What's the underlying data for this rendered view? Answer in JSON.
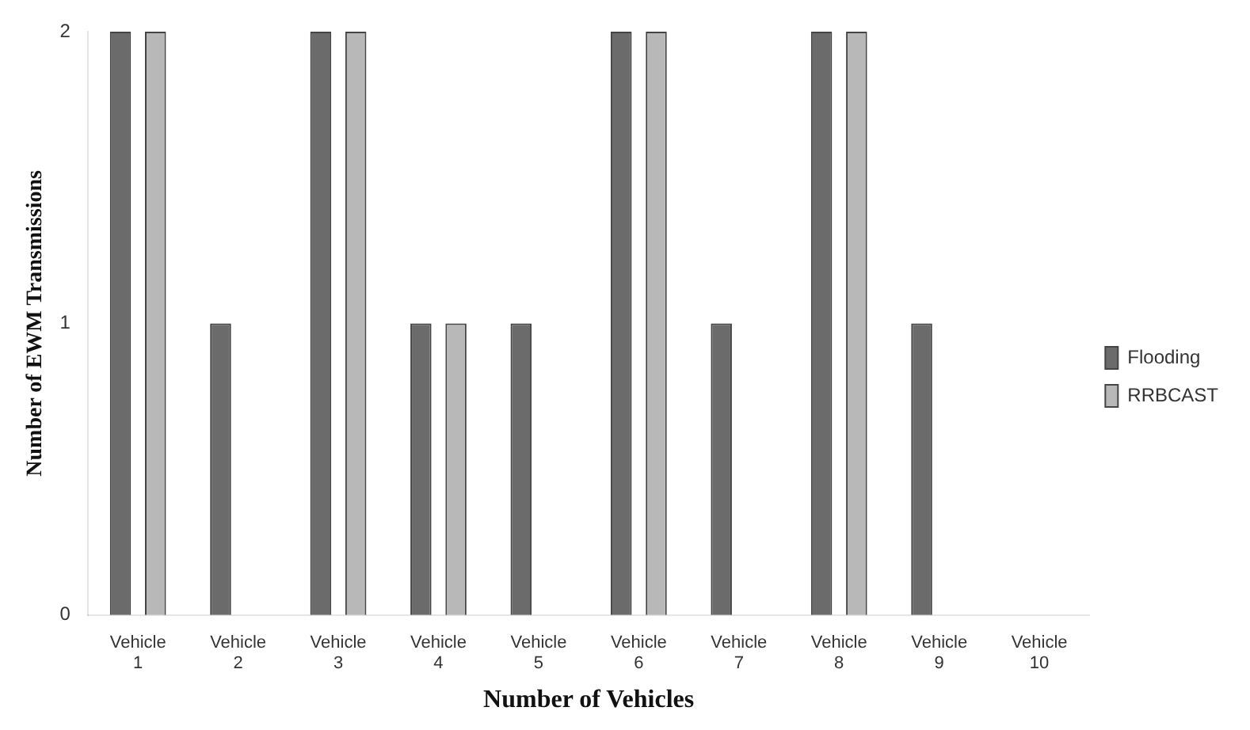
{
  "chart_data": {
    "type": "bar",
    "xlabel": "Number of Vehicles",
    "ylabel": "Number of EWM Transmissions",
    "categories": [
      "Vehicle 1",
      "Vehicle 2",
      "Vehicle 3",
      "Vehicle 4",
      "Vehicle 5",
      "Vehicle 6",
      "Vehicle 7",
      "Vehicle 8",
      "Vehicle 9",
      "Vehicle 10"
    ],
    "series": [
      {
        "name": "Flooding",
        "color": "#6b6b6b",
        "values": [
          2,
          1,
          2,
          1,
          1,
          2,
          1,
          2,
          1,
          0
        ]
      },
      {
        "name": "RRBCAST",
        "color": "#b8b8b8",
        "values": [
          2,
          0,
          2,
          1,
          0,
          2,
          0,
          2,
          0,
          0
        ]
      }
    ],
    "ylim": [
      0,
      2
    ],
    "yticks": [
      0,
      1,
      2
    ],
    "grid": false,
    "legend": "right"
  }
}
